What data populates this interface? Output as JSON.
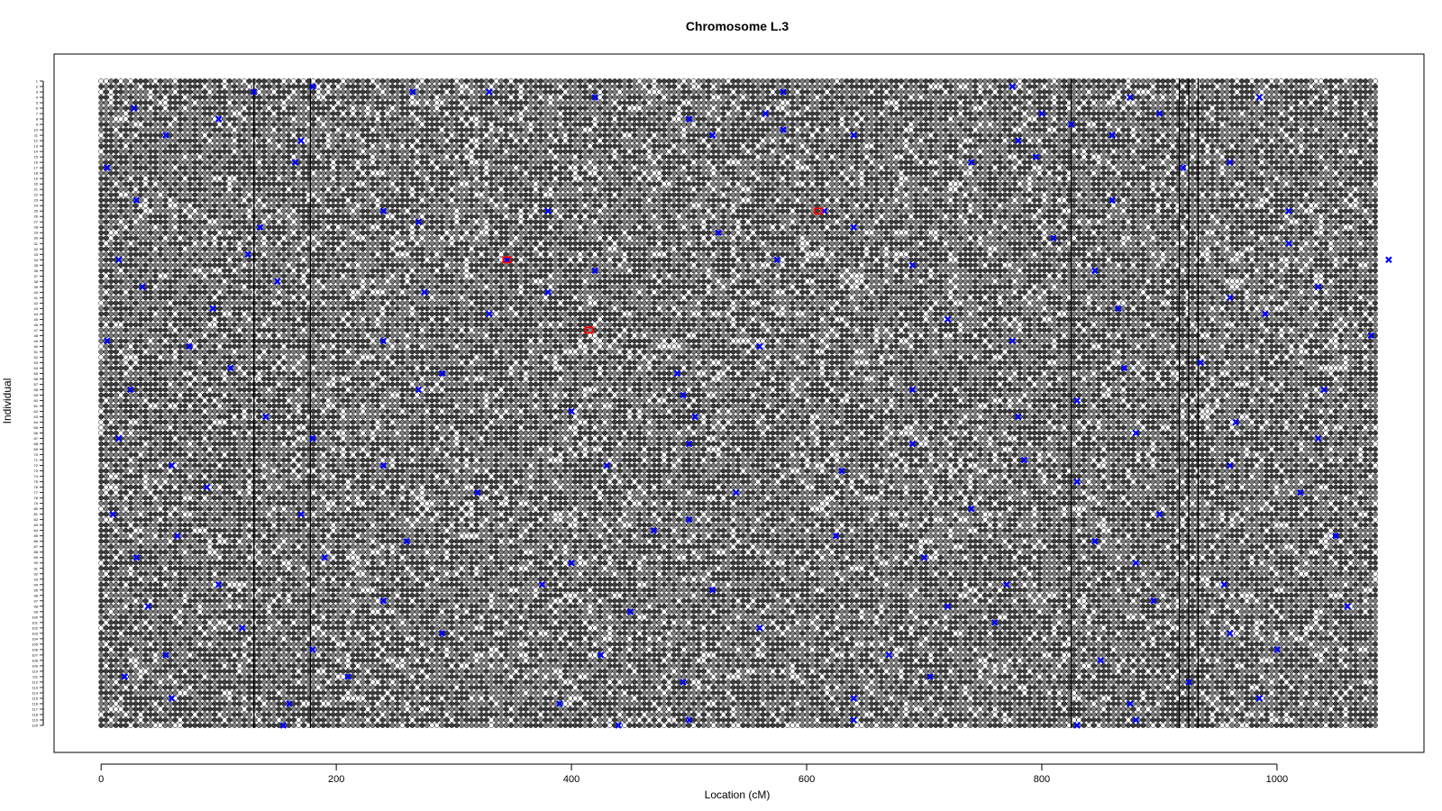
{
  "chart_data": {
    "type": "scatter",
    "title": "Chromosome L.3",
    "xlabel": "Location (cM)",
    "ylabel": "Individual",
    "xlim": [
      -40,
      1125
    ],
    "xticks": [
      0,
      200,
      400,
      600,
      800,
      1000
    ],
    "n_individuals": 120,
    "marker_range": [
      0,
      1085
    ],
    "dense_marker_columns": [
      130,
      178,
      825,
      917,
      925,
      933
    ],
    "genotype_symbol_colors": {
      "outline": "#000000",
      "homozygous_a": "#ffffff",
      "heterozygous": "#7f7f7f",
      "homozygous_b": "#3f3f3f"
    },
    "crossover_color": "#0000ff",
    "error_color": "#ff0000",
    "crossovers": [
      [
        130,
        2
      ],
      [
        180,
        1
      ],
      [
        265,
        2
      ],
      [
        330,
        2
      ],
      [
        420,
        3
      ],
      [
        580,
        2
      ],
      [
        775,
        1
      ],
      [
        875,
        3
      ],
      [
        985,
        3
      ],
      [
        28,
        5
      ],
      [
        100,
        7
      ],
      [
        500,
        7
      ],
      [
        565,
        6
      ],
      [
        800,
        6
      ],
      [
        825,
        8
      ],
      [
        900,
        6
      ],
      [
        55,
        10
      ],
      [
        170,
        11
      ],
      [
        520,
        10
      ],
      [
        580,
        9
      ],
      [
        640,
        10
      ],
      [
        780,
        11
      ],
      [
        860,
        10
      ],
      [
        5,
        16
      ],
      [
        165,
        15
      ],
      [
        740,
        15
      ],
      [
        920,
        16
      ],
      [
        960,
        15
      ],
      [
        795,
        14
      ],
      [
        30,
        22
      ],
      [
        240,
        24
      ],
      [
        380,
        24
      ],
      [
        615,
        24
      ],
      [
        860,
        22
      ],
      [
        1010,
        24
      ],
      [
        135,
        27
      ],
      [
        270,
        26
      ],
      [
        525,
        28
      ],
      [
        640,
        27
      ],
      [
        810,
        29
      ],
      [
        1010,
        30
      ],
      [
        15,
        33
      ],
      [
        125,
        32
      ],
      [
        345,
        33
      ],
      [
        420,
        35
      ],
      [
        575,
        33
      ],
      [
        690,
        34
      ],
      [
        845,
        35
      ],
      [
        1095,
        33
      ],
      [
        35,
        38
      ],
      [
        150,
        37
      ],
      [
        275,
        39
      ],
      [
        380,
        39
      ],
      [
        960,
        40
      ],
      [
        1035,
        38
      ],
      [
        95,
        42
      ],
      [
        330,
        43
      ],
      [
        720,
        44
      ],
      [
        865,
        42
      ],
      [
        990,
        43
      ],
      [
        5,
        48
      ],
      [
        75,
        49
      ],
      [
        240,
        48
      ],
      [
        560,
        49
      ],
      [
        775,
        48
      ],
      [
        1080,
        47
      ],
      [
        110,
        53
      ],
      [
        290,
        54
      ],
      [
        490,
        54
      ],
      [
        870,
        53
      ],
      [
        935,
        52
      ],
      [
        25,
        57
      ],
      [
        270,
        57
      ],
      [
        495,
        58
      ],
      [
        690,
        57
      ],
      [
        830,
        59
      ],
      [
        1040,
        57
      ],
      [
        140,
        62
      ],
      [
        400,
        61
      ],
      [
        505,
        62
      ],
      [
        780,
        62
      ],
      [
        965,
        63
      ],
      [
        15,
        66
      ],
      [
        180,
        66
      ],
      [
        500,
        67
      ],
      [
        690,
        67
      ],
      [
        880,
        65
      ],
      [
        1035,
        66
      ],
      [
        60,
        71
      ],
      [
        240,
        71
      ],
      [
        430,
        71
      ],
      [
        630,
        72
      ],
      [
        785,
        70
      ],
      [
        960,
        71
      ],
      [
        90,
        75
      ],
      [
        320,
        76
      ],
      [
        540,
        76
      ],
      [
        830,
        74
      ],
      [
        1020,
        76
      ],
      [
        10,
        80
      ],
      [
        170,
        80
      ],
      [
        500,
        81
      ],
      [
        740,
        79
      ],
      [
        900,
        80
      ],
      [
        65,
        84
      ],
      [
        260,
        85
      ],
      [
        470,
        83
      ],
      [
        625,
        84
      ],
      [
        845,
        85
      ],
      [
        1050,
        84
      ],
      [
        30,
        88
      ],
      [
        190,
        88
      ],
      [
        400,
        89
      ],
      [
        700,
        88
      ],
      [
        880,
        89
      ],
      [
        100,
        93
      ],
      [
        375,
        93
      ],
      [
        520,
        94
      ],
      [
        770,
        93
      ],
      [
        955,
        93
      ],
      [
        40,
        97
      ],
      [
        240,
        96
      ],
      [
        450,
        98
      ],
      [
        720,
        97
      ],
      [
        895,
        96
      ],
      [
        1060,
        97
      ],
      [
        120,
        101
      ],
      [
        290,
        102
      ],
      [
        560,
        101
      ],
      [
        760,
        100
      ],
      [
        960,
        102
      ],
      [
        55,
        106
      ],
      [
        180,
        105
      ],
      [
        425,
        106
      ],
      [
        670,
        106
      ],
      [
        850,
        107
      ],
      [
        1000,
        105
      ],
      [
        20,
        110
      ],
      [
        210,
        110
      ],
      [
        495,
        111
      ],
      [
        705,
        110
      ],
      [
        925,
        111
      ],
      [
        60,
        114
      ],
      [
        160,
        115
      ],
      [
        390,
        115
      ],
      [
        640,
        114
      ],
      [
        875,
        115
      ],
      [
        985,
        114
      ],
      [
        155,
        119
      ],
      [
        440,
        119
      ],
      [
        500,
        118
      ],
      [
        640,
        118
      ],
      [
        830,
        119
      ],
      [
        880,
        118
      ]
    ],
    "errors": [
      [
        345,
        33
      ],
      [
        610,
        24
      ],
      [
        415,
        46
      ]
    ]
  }
}
